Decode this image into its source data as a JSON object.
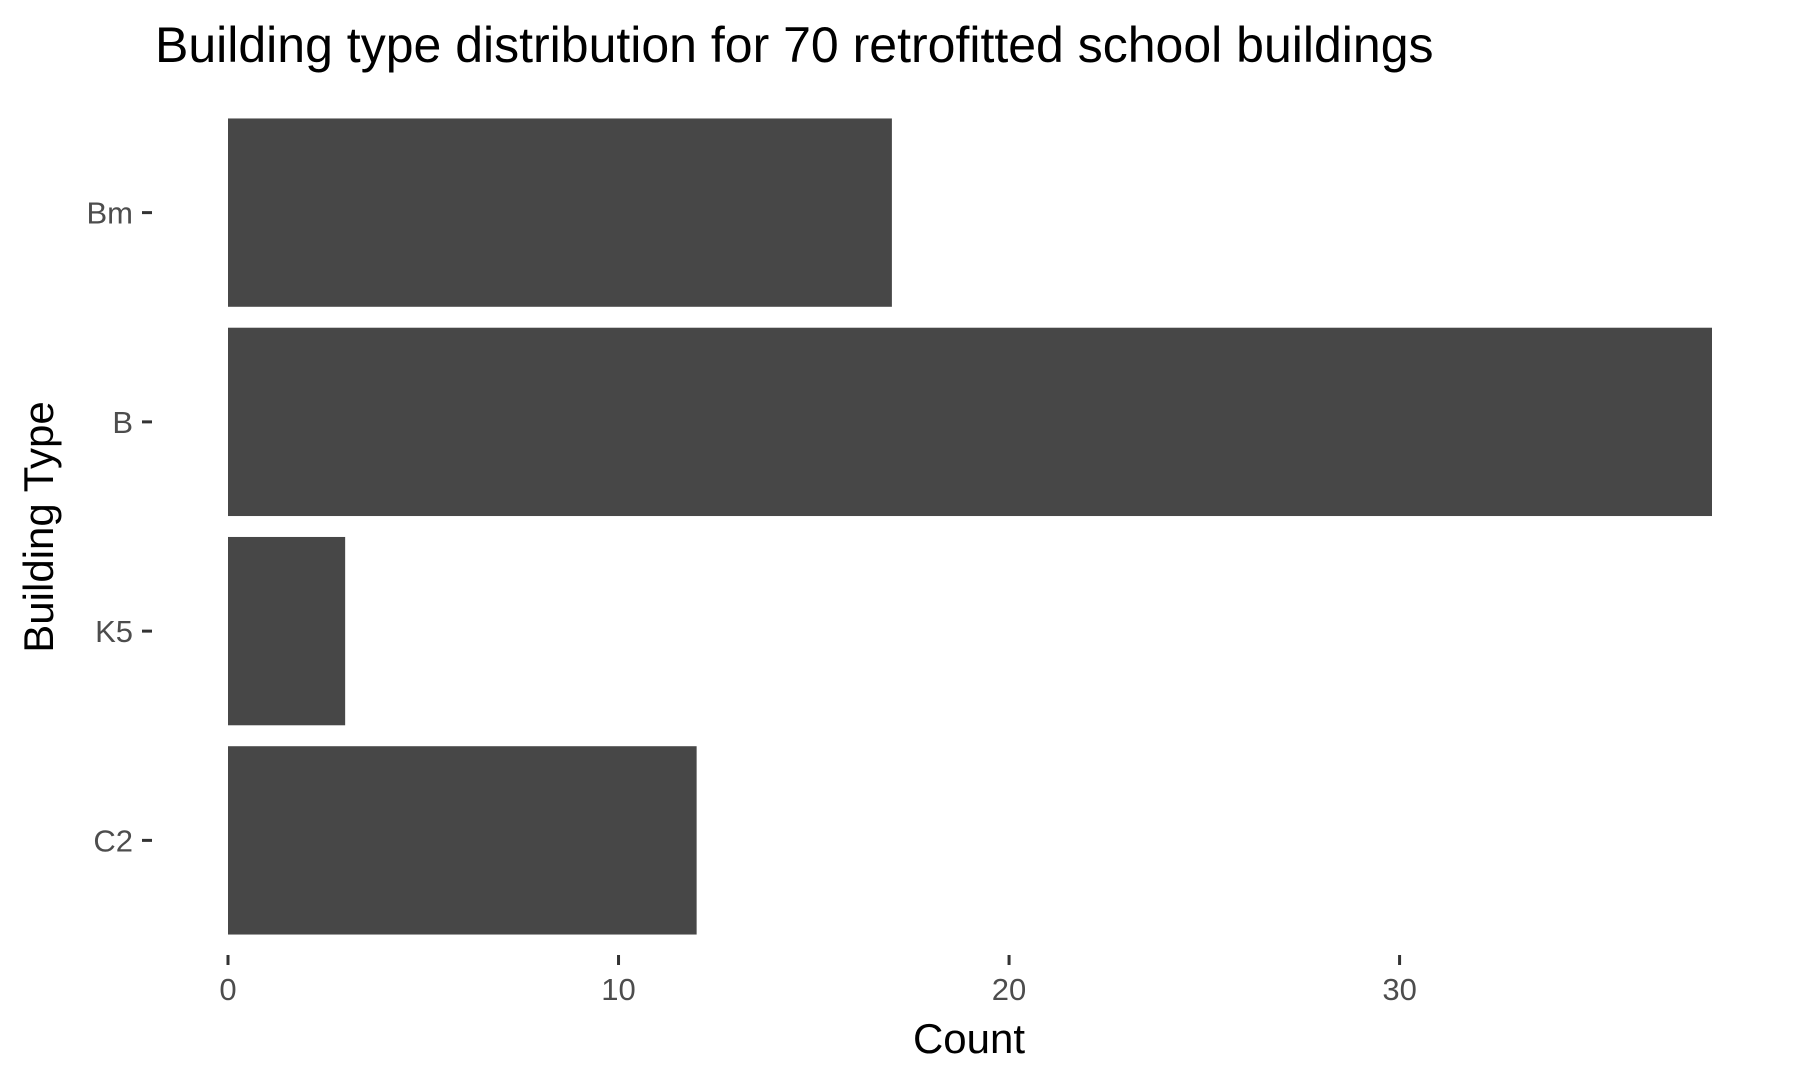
{
  "chart_data": {
    "type": "bar",
    "orientation": "horizontal",
    "title": "Building type distribution for 70 retrofitted school buildings",
    "xlabel": "Count",
    "ylabel": "Building Type",
    "categories": [
      "Bm",
      "B",
      "K5",
      "C2"
    ],
    "values": [
      17,
      38,
      3,
      12
    ],
    "xlim": [
      0,
      38
    ],
    "x_ticks": [
      0,
      10,
      20,
      30
    ],
    "x_tick_labels": [
      "0",
      "10",
      "20",
      "30"
    ],
    "grid": false,
    "legend": "none",
    "bar_color": "#474747"
  }
}
